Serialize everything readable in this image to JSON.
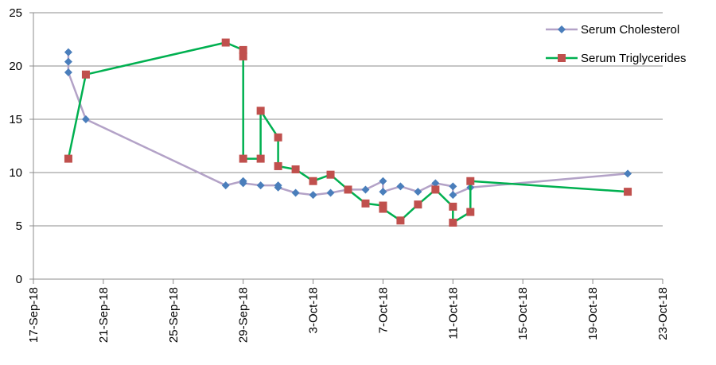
{
  "chart_data": {
    "type": "line",
    "title": "",
    "xlabel": "",
    "ylabel": "",
    "ylim": [
      0,
      25
    ],
    "y_ticks": [
      "0",
      "5",
      "10",
      "15",
      "20",
      "25"
    ],
    "x_ticks": [
      "17-Sep-18",
      "21-Sep-18",
      "25-Sep-18",
      "29-Sep-18",
      "3-Oct-18",
      "7-Oct-18",
      "11-Oct-18",
      "15-Oct-18",
      "19-Oct-18",
      "23-Oct-18"
    ],
    "xlim": [
      "2018-09-17",
      "2018-10-23"
    ],
    "grid": "horizontal",
    "legend_position": "top-right",
    "series": [
      {
        "name": "Serum Cholesterol",
        "color": "#b3a2c7",
        "marker_color": "#4a7ebb",
        "marker": "diamond",
        "points": [
          [
            "2018-09-19",
            21.3
          ],
          [
            "2018-09-19",
            20.4
          ],
          [
            "2018-09-19",
            19.4
          ],
          [
            "2018-09-20",
            15.0
          ],
          [
            "2018-09-28",
            8.8
          ],
          [
            "2018-09-29",
            9.2
          ],
          [
            "2018-09-29",
            9.0
          ],
          [
            "2018-09-30",
            8.8
          ],
          [
            "2018-10-01",
            8.8
          ],
          [
            "2018-10-01",
            8.6
          ],
          [
            "2018-10-02",
            8.1
          ],
          [
            "2018-10-03",
            7.9
          ],
          [
            "2018-10-04",
            8.1
          ],
          [
            "2018-10-05",
            8.4
          ],
          [
            "2018-10-06",
            8.4
          ],
          [
            "2018-10-07",
            9.2
          ],
          [
            "2018-10-07",
            8.2
          ],
          [
            "2018-10-08",
            8.7
          ],
          [
            "2018-10-09",
            8.2
          ],
          [
            "2018-10-10",
            9.0
          ],
          [
            "2018-10-11",
            8.7
          ],
          [
            "2018-10-11",
            7.9
          ],
          [
            "2018-10-12",
            8.6
          ],
          [
            "2018-10-21",
            9.9
          ]
        ]
      },
      {
        "name": "Serum Triglycerides",
        "color": "#00b050",
        "marker_color": "#c0504d",
        "marker": "square",
        "points": [
          [
            "2018-09-19",
            11.3
          ],
          [
            "2018-09-20",
            19.2
          ],
          [
            "2018-09-28",
            22.2
          ],
          [
            "2018-09-29",
            21.5
          ],
          [
            "2018-09-29",
            20.9
          ],
          [
            "2018-09-29",
            11.3
          ],
          [
            "2018-09-30",
            11.3
          ],
          [
            "2018-09-30",
            15.8
          ],
          [
            "2018-10-01",
            13.3
          ],
          [
            "2018-10-01",
            10.6
          ],
          [
            "2018-10-02",
            10.3
          ],
          [
            "2018-10-03",
            9.2
          ],
          [
            "2018-10-04",
            9.8
          ],
          [
            "2018-10-05",
            8.4
          ],
          [
            "2018-10-06",
            7.1
          ],
          [
            "2018-10-07",
            6.9
          ],
          [
            "2018-10-07",
            6.6
          ],
          [
            "2018-10-08",
            5.5
          ],
          [
            "2018-10-09",
            7.0
          ],
          [
            "2018-10-10",
            8.4
          ],
          [
            "2018-10-11",
            6.8
          ],
          [
            "2018-10-11",
            5.3
          ],
          [
            "2018-10-12",
            6.3
          ],
          [
            "2018-10-12",
            9.2
          ],
          [
            "2018-10-21",
            8.2
          ]
        ]
      }
    ]
  }
}
